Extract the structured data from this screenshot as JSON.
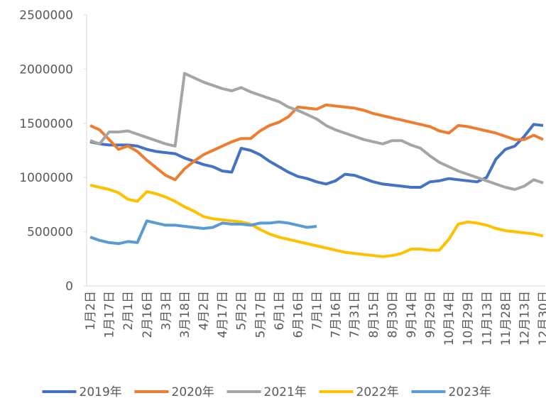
{
  "chart_data": {
    "type": "line",
    "categories": [
      "1月2日",
      null,
      "1月17日",
      null,
      "2月1日",
      null,
      "2月16日",
      null,
      "3月3日",
      null,
      "3月18日",
      null,
      "4月2日",
      null,
      "4月17日",
      null,
      "5月2日",
      null,
      "5月17日",
      null,
      "6月1日",
      null,
      "6月16日",
      null,
      "7月1日",
      null,
      "7月16日",
      null,
      "7月31日",
      null,
      "8月15日",
      null,
      "8月30日",
      null,
      "9月14日",
      null,
      "9月29日",
      null,
      "10月14日",
      null,
      "10月29日",
      null,
      "11月13日",
      null,
      "11月28日",
      null,
      "12月13日",
      null,
      "12月30日"
    ],
    "series": [
      {
        "name": "2019年",
        "color": "#4472c4",
        "values": [
          1330000,
          1310000,
          1300000,
          1300000,
          1300000,
          1290000,
          1260000,
          1240000,
          1230000,
          1220000,
          1180000,
          1150000,
          1120000,
          1100000,
          1060000,
          1050000,
          1270000,
          1250000,
          1210000,
          1150000,
          1100000,
          1050000,
          1010000,
          990000,
          960000,
          940000,
          970000,
          1030000,
          1020000,
          990000,
          960000,
          940000,
          930000,
          920000,
          910000,
          910000,
          960000,
          970000,
          990000,
          980000,
          970000,
          960000,
          1000000,
          1170000,
          1260000,
          1290000,
          1380000,
          1490000,
          1480000
        ]
      },
      {
        "name": "2020年",
        "color": "#ed7d31",
        "values": [
          1480000,
          1440000,
          1350000,
          1260000,
          1290000,
          1240000,
          1160000,
          1090000,
          1020000,
          980000,
          1080000,
          1150000,
          1210000,
          1250000,
          1290000,
          1330000,
          1360000,
          1360000,
          1430000,
          1480000,
          1510000,
          1560000,
          1650000,
          1640000,
          1630000,
          1670000,
          1660000,
          1650000,
          1640000,
          1620000,
          1590000,
          1570000,
          1550000,
          1530000,
          1510000,
          1490000,
          1470000,
          1430000,
          1410000,
          1480000,
          1470000,
          1450000,
          1430000,
          1410000,
          1380000,
          1350000,
          1350000,
          1390000,
          1350000
        ]
      },
      {
        "name": "2021年",
        "color": "#a5a5a5",
        "values": [
          1340000,
          1310000,
          1420000,
          1420000,
          1430000,
          1400000,
          1370000,
          1340000,
          1310000,
          1290000,
          1960000,
          1920000,
          1880000,
          1850000,
          1820000,
          1800000,
          1830000,
          1790000,
          1760000,
          1730000,
          1700000,
          1650000,
          1620000,
          1580000,
          1540000,
          1480000,
          1440000,
          1410000,
          1380000,
          1350000,
          1330000,
          1310000,
          1340000,
          1340000,
          1300000,
          1270000,
          1200000,
          1140000,
          1100000,
          1060000,
          1030000,
          1000000,
          970000,
          940000,
          910000,
          890000,
          920000,
          980000,
          950000
        ]
      },
      {
        "name": "2022年",
        "color": "#ffc000",
        "values": [
          930000,
          910000,
          890000,
          860000,
          800000,
          780000,
          870000,
          850000,
          820000,
          780000,
          730000,
          690000,
          640000,
          620000,
          610000,
          600000,
          590000,
          570000,
          520000,
          480000,
          450000,
          430000,
          410000,
          390000,
          370000,
          350000,
          330000,
          310000,
          300000,
          290000,
          280000,
          270000,
          280000,
          300000,
          340000,
          340000,
          330000,
          330000,
          430000,
          570000,
          590000,
          580000,
          560000,
          530000,
          510000,
          500000,
          490000,
          480000,
          460000
        ]
      },
      {
        "name": "2023年",
        "color": "#5b9bd5",
        "values": [
          450000,
          420000,
          400000,
          390000,
          410000,
          400000,
          600000,
          580000,
          560000,
          560000,
          550000,
          540000,
          530000,
          540000,
          580000,
          570000,
          570000,
          560000,
          580000,
          580000,
          590000,
          580000,
          560000,
          540000,
          550000,
          null,
          null,
          null,
          null,
          null,
          null,
          null,
          null,
          null,
          null,
          null,
          null,
          null,
          null,
          null,
          null,
          null,
          null,
          null,
          null,
          null,
          null,
          null,
          null
        ]
      }
    ],
    "ylim": [
      0,
      2500000
    ],
    "yticks": [
      0,
      500000,
      1000000,
      1500000,
      2000000,
      2500000
    ],
    "grid": false,
    "legend": "bottom"
  }
}
